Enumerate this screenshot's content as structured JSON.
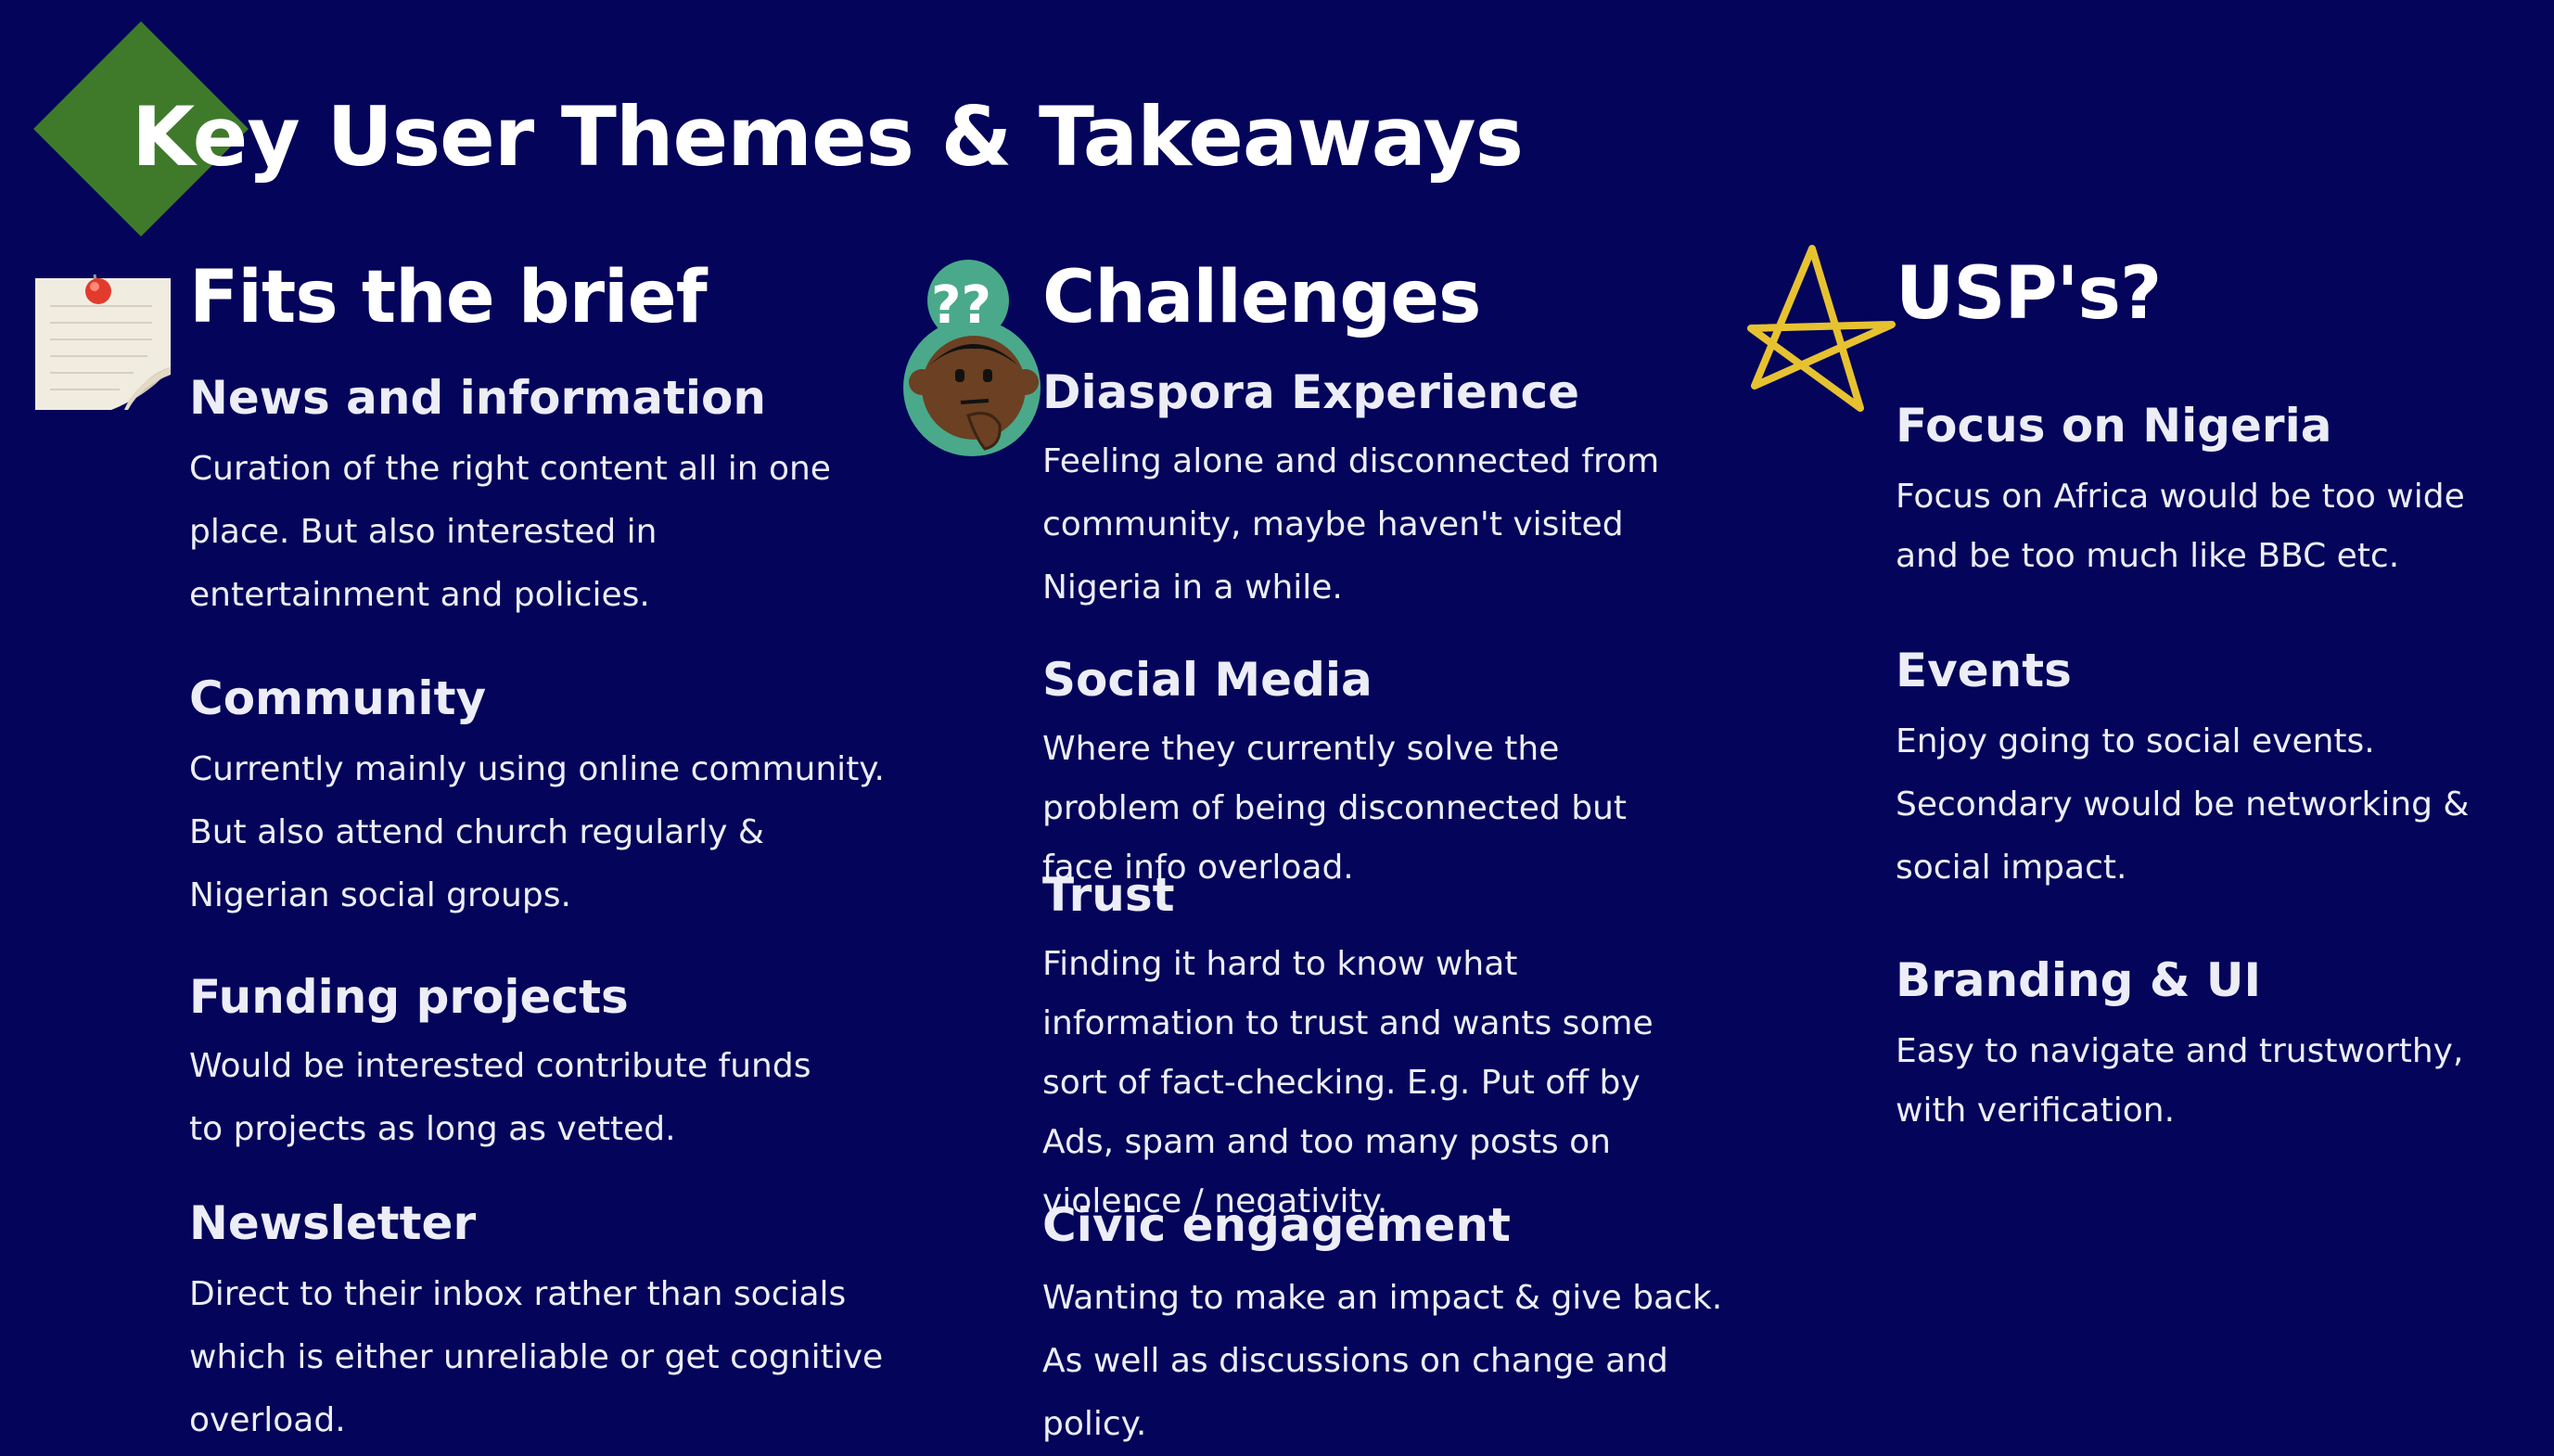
{
  "slide": {
    "title": "Key User Themes & Takeaways",
    "colors": {
      "background": "#03045a",
      "diamond": "#3f7a2b",
      "star": "#e7c230",
      "thinking_face_ring": "#4aa98a"
    }
  },
  "columns": [
    {
      "heading": "Fits the brief",
      "icon": "pinned-note-icon",
      "items": [
        {
          "title": "News and information",
          "text": "Curation of the right content all in one place. But also interested in entertainment and policies."
        },
        {
          "title": "Community",
          "text": "Currently mainly using online community. But also attend church regularly & Nigerian social groups."
        },
        {
          "title": "Funding projects",
          "text": "Would be interested contribute funds to projects as long as vetted."
        },
        {
          "title": "Newsletter",
          "text": "Direct to their inbox rather than socials which is either unreliable or get cognitive overload."
        }
      ]
    },
    {
      "heading": "Challenges",
      "icon": "thinking-face-icon",
      "items": [
        {
          "title": "Diaspora Experience",
          "text": "Feeling alone and disconnected from community, maybe haven't visited Nigeria in a while."
        },
        {
          "title": "Social Media",
          "text": "Where they currently solve the problem of being disconnected but face info overload."
        },
        {
          "title": "Trust",
          "text": "Finding it hard to know what information to trust and wants some sort of fact-checking. E.g. Put off by Ads, spam and too many posts on violence / negativity."
        },
        {
          "title": "Civic engagement",
          "text": "Wanting to make an impact & give back. As well as discussions on change and policy."
        }
      ]
    },
    {
      "heading": "USP's?",
      "icon": "star-outline-icon",
      "items": [
        {
          "title": "Focus on Nigeria",
          "text": "Focus on Africa would be too wide and be too much like BBC etc."
        },
        {
          "title": "Events",
          "text": "Enjoy going to social events. Secondary would be networking & social impact."
        },
        {
          "title": "Branding & UI",
          "text": "Easy to navigate and trustworthy, with verification."
        }
      ]
    }
  ]
}
